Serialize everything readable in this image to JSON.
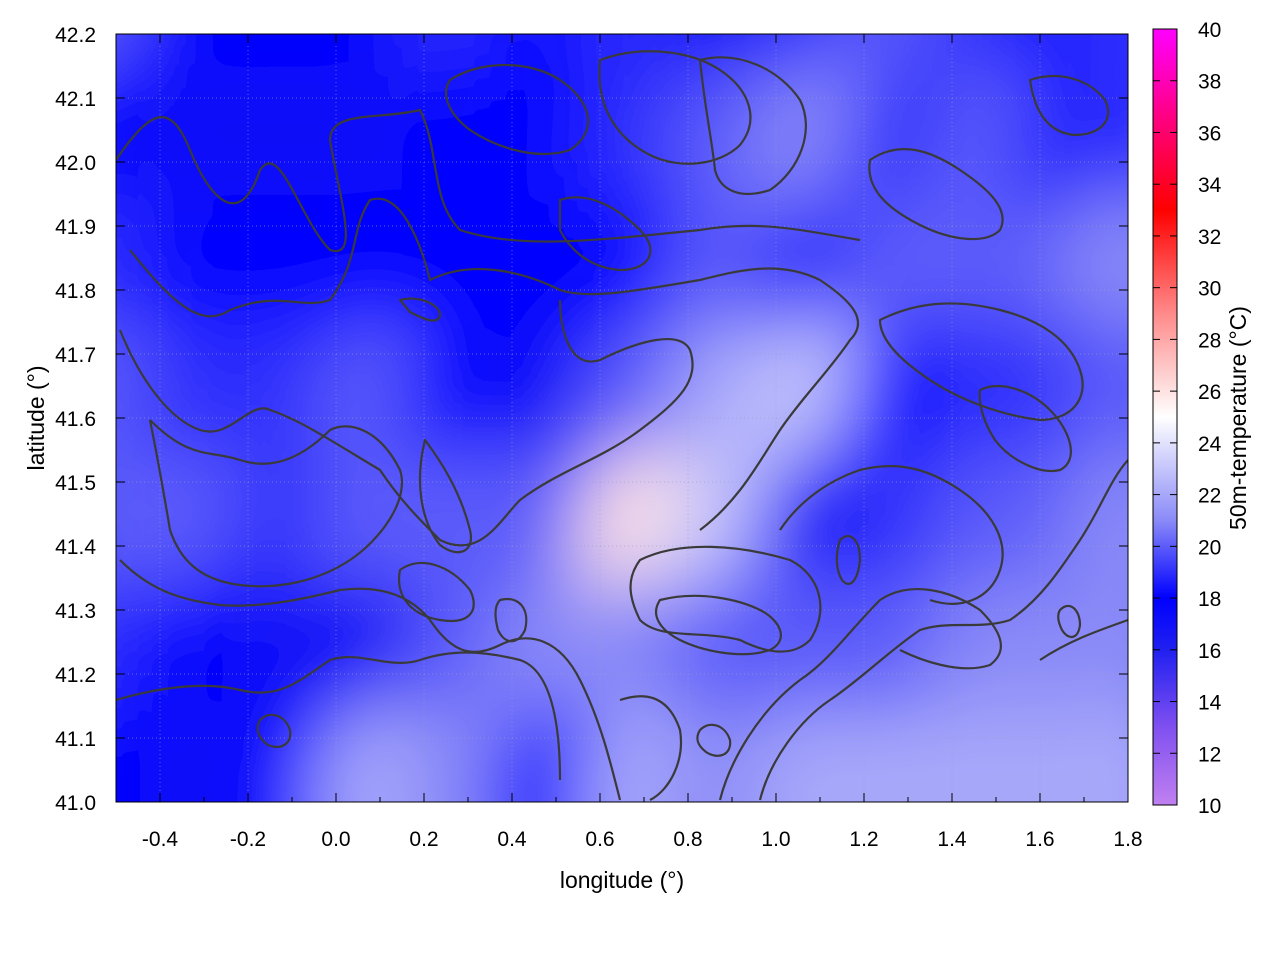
{
  "chart_data": {
    "type": "heatmap",
    "title": "",
    "xlabel": "longitude (°)",
    "ylabel": "latitude (°)",
    "colorbar_label": "50m-temperature (°C)",
    "xlim": [
      -0.5,
      1.8
    ],
    "ylim": [
      41.0,
      42.2
    ],
    "x_ticks": [
      "-0.4",
      "-0.2",
      "0.0",
      "0.2",
      "0.4",
      "0.6",
      "0.8",
      "1.0",
      "1.2",
      "1.4",
      "1.6",
      "1.8"
    ],
    "x_tick_values": [
      -0.4,
      -0.2,
      0.0,
      0.2,
      0.4,
      0.6,
      0.8,
      1.0,
      1.2,
      1.4,
      1.6,
      1.8
    ],
    "y_ticks": [
      "41.0",
      "41.1",
      "41.2",
      "41.3",
      "41.4",
      "41.5",
      "41.6",
      "41.7",
      "41.8",
      "41.9",
      "42.0",
      "42.1",
      "42.2"
    ],
    "y_tick_values": [
      41.0,
      41.1,
      41.2,
      41.3,
      41.4,
      41.5,
      41.6,
      41.7,
      41.8,
      41.9,
      42.0,
      42.1,
      42.2
    ],
    "colorbar": {
      "range": [
        10,
        40
      ],
      "ticks": [
        "10",
        "12",
        "14",
        "16",
        "18",
        "20",
        "22",
        "24",
        "26",
        "28",
        "30",
        "32",
        "34",
        "36",
        "38",
        "40"
      ],
      "tick_values": [
        10,
        12,
        14,
        16,
        18,
        20,
        22,
        24,
        26,
        28,
        30,
        32,
        34,
        36,
        38,
        40
      ],
      "colors": [
        "#c080f0",
        "#8050f0",
        "#2020f0",
        "#0000ff",
        "#8a8af8",
        "#ffffff",
        "#ff8a8a",
        "#ff0000",
        "#ff00ff"
      ],
      "color_stops": [
        10,
        13,
        16,
        18,
        21,
        25,
        29,
        33,
        40
      ]
    },
    "grid": true,
    "contours": true,
    "field_samples": {
      "x": [
        -0.5,
        -0.3,
        -0.1,
        0.1,
        0.3,
        0.5,
        0.7,
        0.9,
        1.1,
        1.3,
        1.5,
        1.7,
        1.8
      ],
      "y": [
        42.2,
        42.0,
        41.8,
        41.6,
        41.4,
        41.2,
        41.0
      ],
      "temperature": [
        [
          20,
          18,
          18,
          18,
          19,
          18,
          19,
          17,
          19,
          20,
          19,
          18,
          19
        ],
        [
          18,
          17,
          17,
          17,
          18,
          18,
          19,
          20,
          21,
          19,
          20,
          18,
          19
        ],
        [
          19,
          18,
          18,
          18,
          18,
          18,
          18,
          20,
          19,
          20,
          20,
          20,
          21
        ],
        [
          20,
          19,
          19,
          20,
          18,
          17,
          20,
          22,
          23,
          18,
          19,
          19,
          20
        ],
        [
          20,
          20,
          19,
          20,
          20,
          20,
          26,
          23,
          17,
          19,
          20,
          20,
          21
        ],
        [
          19,
          18,
          17,
          17,
          20,
          21,
          21,
          20,
          20,
          20,
          21,
          21,
          21
        ],
        [
          18,
          17,
          18,
          22,
          21,
          18,
          22,
          21,
          22,
          22,
          22,
          22,
          22
        ]
      ]
    }
  }
}
